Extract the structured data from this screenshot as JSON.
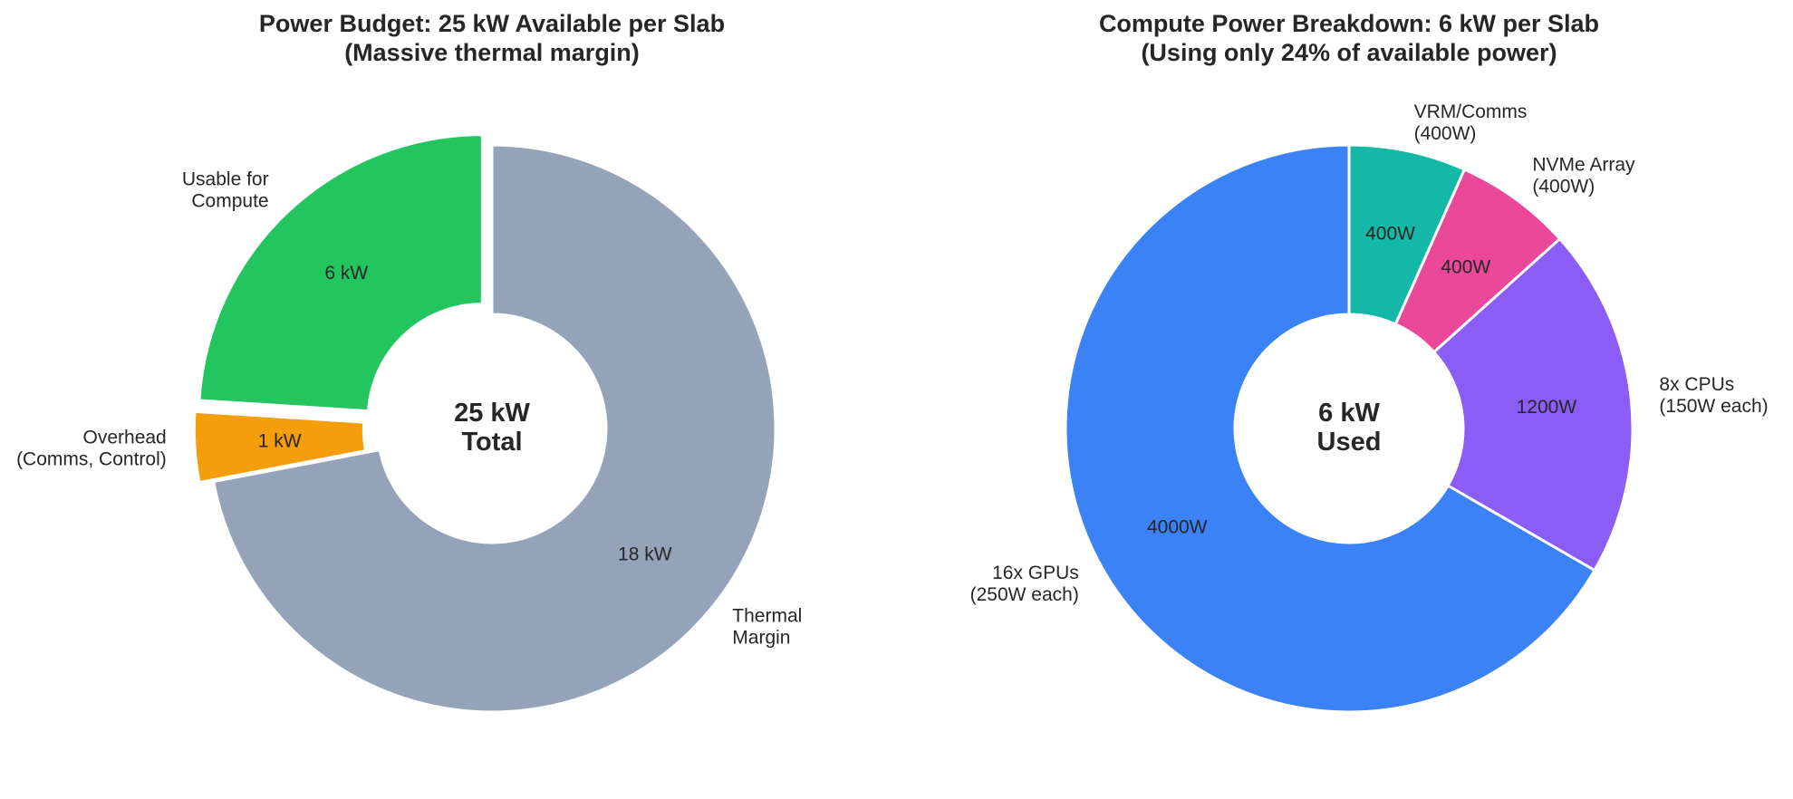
{
  "chart_data": [
    {
      "type": "donut",
      "title": "Power Budget: 25 kW Available per Slab",
      "subtitle": "(Massive thermal margin)",
      "categories": [
        "Usable for\nCompute",
        "Overhead\n(Comms, Control)",
        "Thermal\nMargin"
      ],
      "values": [
        6,
        1,
        18
      ],
      "value_labels": [
        "6 kW",
        "1 kW",
        "18 kW"
      ],
      "colors": [
        "#22c55e",
        "#f59e0b",
        "#94a3b8"
      ],
      "explode": [
        0.05,
        0.05,
        0
      ],
      "startangle": 90,
      "center_label": "25 kW\nTotal"
    },
    {
      "type": "donut",
      "title": "Compute Power Breakdown: 6 kW per Slab",
      "subtitle": "(Using only 24% of available power)",
      "categories": [
        "16x GPUs\n(250W each)",
        "8x CPUs\n(150W each)",
        "NVMe Array\n(400W)",
        "VRM/Comms\n(400W)"
      ],
      "values": [
        4000,
        1200,
        400,
        400
      ],
      "value_labels": [
        "4000W",
        "1200W",
        "400W",
        "400W"
      ],
      "colors": [
        "#3b82f6",
        "#8b5cf6",
        "#ec4899",
        "#14b8a6"
      ],
      "explode": [
        0,
        0,
        0,
        0
      ],
      "startangle": 90,
      "center_label": "6 kW\nUsed"
    }
  ]
}
